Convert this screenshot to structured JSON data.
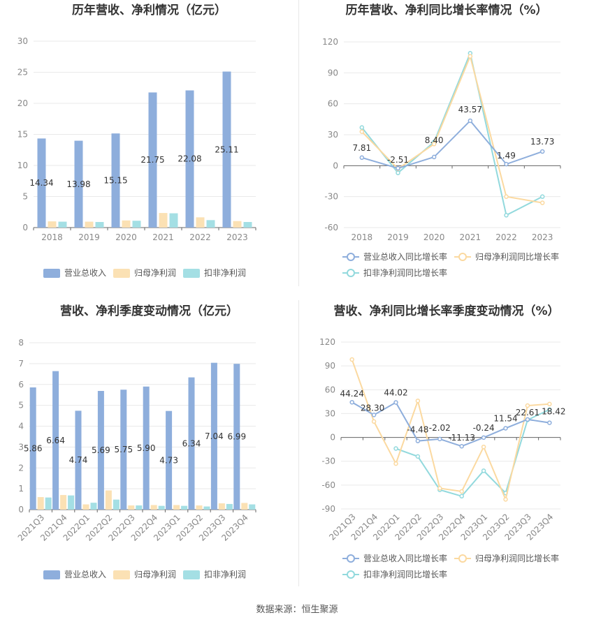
{
  "source_text": "数据来源：恒生聚源",
  "chart_data": [
    {
      "type": "bar",
      "title": "历年营收、净利情况（亿元）",
      "categories": [
        "2018",
        "2019",
        "2020",
        "2021",
        "2022",
        "2023"
      ],
      "ylim": [
        0,
        30
      ],
      "yticks": [
        0,
        5,
        10,
        15,
        20,
        25,
        30
      ],
      "series": [
        {
          "name": "营业总收入",
          "color": "#8eaedc",
          "values": [
            14.34,
            13.98,
            15.15,
            21.75,
            22.08,
            25.11
          ],
          "labels": [
            "14.34",
            "13.98",
            "15.15",
            "21.75",
            "22.08",
            "25.11"
          ]
        },
        {
          "name": "归母净利润",
          "color": "#fbe1b4",
          "values": [
            1.0,
            0.95,
            1.15,
            2.35,
            1.65,
            1.05
          ]
        },
        {
          "name": "扣非净利润",
          "color": "#a4dfe4",
          "values": [
            0.95,
            0.9,
            1.1,
            2.3,
            1.2,
            0.9
          ]
        }
      ],
      "legend_position": "bottom"
    },
    {
      "type": "line",
      "title": "历年营收、净利同比增长率情况（%）",
      "categories": [
        "2018",
        "2019",
        "2020",
        "2021",
        "2022",
        "2023"
      ],
      "ylim": [
        -60,
        120
      ],
      "yticks": [
        -60,
        -30,
        0,
        30,
        60,
        90,
        120
      ],
      "series": [
        {
          "name": "营业总收入同比增长率",
          "color": "#8eaedc",
          "values": [
            7.81,
            -2.51,
            8.4,
            43.57,
            1.49,
            13.73
          ],
          "labels": [
            "7.81",
            "-2.51",
            "8.40",
            "43.57",
            "1.49",
            "13.73"
          ]
        },
        {
          "name": "归母净利润同比增长率",
          "color": "#fbd9a0",
          "values": [
            33,
            -3,
            21,
            106,
            -30,
            -36
          ]
        },
        {
          "name": "扣非净利润同比增长率",
          "color": "#92d9dd",
          "values": [
            37,
            -7,
            23,
            109,
            -48,
            -30
          ]
        }
      ],
      "legend_position": "bottom"
    },
    {
      "type": "bar",
      "title": "营收、净利季度变动情况（亿元）",
      "categories": [
        "2021Q3",
        "2021Q4",
        "2022Q1",
        "2022Q2",
        "2022Q3",
        "2022Q4",
        "2023Q1",
        "2023Q2",
        "2023Q3",
        "2023Q4"
      ],
      "ylim": [
        0,
        8
      ],
      "yticks": [
        0,
        1,
        2,
        3,
        4,
        5,
        6,
        7,
        8
      ],
      "series": [
        {
          "name": "营业总收入",
          "color": "#8eaedc",
          "values": [
            5.86,
            6.64,
            4.74,
            5.69,
            5.75,
            5.9,
            4.73,
            6.34,
            7.04,
            6.99
          ],
          "labels": [
            "5.86",
            "6.64",
            "4.74",
            "5.69",
            "5.75",
            "5.90",
            "4.73",
            "6.34",
            "7.04",
            "6.99"
          ]
        },
        {
          "name": "归母净利润",
          "color": "#fbe1b4",
          "values": [
            0.6,
            0.7,
            0.25,
            0.92,
            0.2,
            0.22,
            0.22,
            0.2,
            0.3,
            0.32
          ]
        },
        {
          "name": "扣非净利润",
          "color": "#a4dfe4",
          "values": [
            0.58,
            0.68,
            0.33,
            0.48,
            0.2,
            0.18,
            0.18,
            0.15,
            0.27,
            0.25
          ]
        }
      ],
      "legend_position": "bottom"
    },
    {
      "type": "line",
      "title": "营收、净利同比增长率季度变动情况（%）",
      "categories": [
        "2021Q3",
        "2021Q4",
        "2022Q1",
        "2022Q2",
        "2022Q3",
        "2022Q4",
        "2023Q1",
        "2023Q2",
        "2023Q3",
        "2023Q4"
      ],
      "ylim": [
        -90,
        120
      ],
      "yticks": [
        -90,
        -60,
        -30,
        0,
        30,
        60,
        90,
        120
      ],
      "series": [
        {
          "name": "营业总收入同比增长率",
          "color": "#8eaedc",
          "values": [
            44.24,
            28.3,
            44.02,
            -4.48,
            -2.02,
            -11.13,
            -0.24,
            11.54,
            22.61,
            18.42
          ],
          "labels": [
            "44.24",
            "28.30",
            "44.02",
            "-4.48",
            "-2.02",
            "-11.13",
            "-0.24",
            "11.54",
            "22.61",
            "18.42"
          ]
        },
        {
          "name": "归母净利润同比增长率",
          "color": "#fbd9a0",
          "values": [
            98,
            20,
            -33,
            46,
            -64,
            -68,
            -12,
            -78,
            40,
            42
          ]
        },
        {
          "name": "扣非净利润同比增长率",
          "color": "#92d9dd",
          "values": [
            null,
            null,
            -14,
            -24,
            -66,
            -74,
            -42,
            -70,
            22,
            35
          ]
        }
      ],
      "legend_position": "bottom"
    }
  ]
}
